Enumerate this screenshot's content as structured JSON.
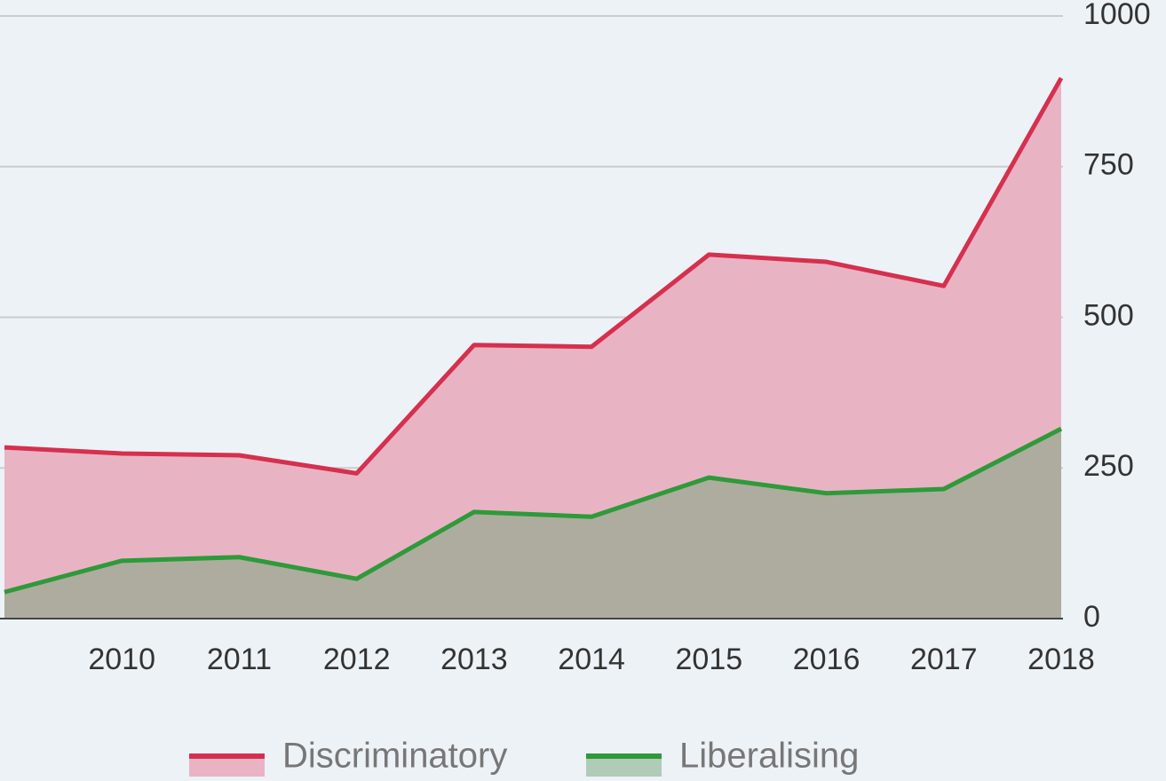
{
  "chart_data": {
    "type": "area",
    "categories": [
      null,
      "2010",
      "2011",
      "2012",
      "2013",
      "2014",
      "2015",
      "2016",
      "2017",
      "2018"
    ],
    "series": [
      {
        "name": "Discriminatory",
        "color": "#d6304f",
        "fill": "#e8b4c4",
        "values": [
          284,
          274,
          271,
          241,
          454,
          451,
          604,
          592,
          552,
          897
        ]
      },
      {
        "name": "Liberalising",
        "color": "#2e9a3a",
        "fill": "#74a478",
        "values": [
          44,
          96,
          102,
          66,
          177,
          169,
          234,
          208,
          215,
          315
        ]
      }
    ],
    "ylim": [
      0,
      1000
    ],
    "yticks": [
      0,
      250,
      500,
      750,
      1000
    ],
    "grid": true,
    "y_axis_side": "right",
    "legend": "bottom"
  }
}
